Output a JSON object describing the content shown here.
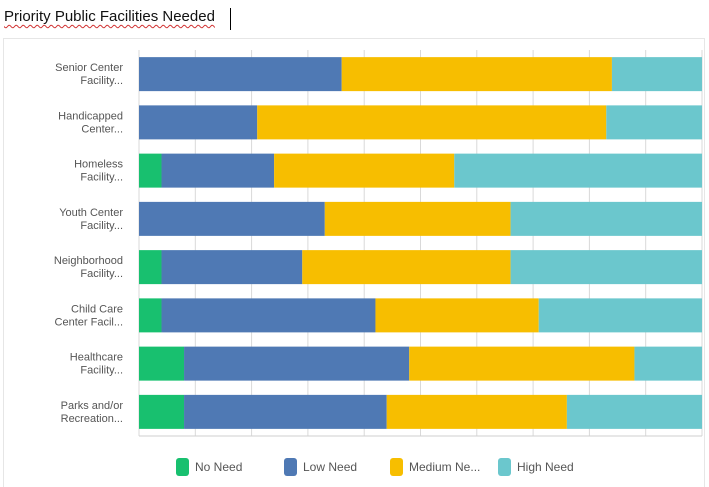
{
  "title": "Priority Public Facilities Needed",
  "colors": {
    "no_need": "#18c06f",
    "low_need": "#4f79b4",
    "medium_need": "#f7be00",
    "high_need": "#6bc7cd",
    "grid": "#d9d9d9",
    "label": "#555555"
  },
  "chart_data": {
    "type": "bar",
    "orientation": "horizontal",
    "stacked": true,
    "percent": true,
    "title": "Priority Public Facilities Needed",
    "categories": [
      [
        "Senior Center",
        "Facility..."
      ],
      [
        "Handicapped",
        "Center..."
      ],
      [
        "Homeless",
        "Facility..."
      ],
      [
        "Youth Center",
        "Facility..."
      ],
      [
        "Neighborhood",
        "Facility..."
      ],
      [
        "Child Care",
        "Center Facil..."
      ],
      [
        "Healthcare",
        "Facility..."
      ],
      [
        "Parks and/or",
        "Recreation..."
      ]
    ],
    "series": [
      {
        "name": "No Need",
        "color": "#18c06f",
        "values": [
          0,
          0,
          4,
          0,
          4,
          4,
          8,
          8
        ]
      },
      {
        "name": "Low Need",
        "color": "#4f79b4",
        "values": [
          36,
          21,
          20,
          33,
          25,
          38,
          40,
          36
        ]
      },
      {
        "name": "Medium Ne...",
        "color": "#f7be00",
        "values": [
          48,
          62,
          32,
          33,
          37,
          29,
          40,
          32
        ]
      },
      {
        "name": "High Need",
        "color": "#6bc7cd",
        "values": [
          16,
          17,
          44,
          34,
          34,
          29,
          12,
          24
        ]
      }
    ],
    "xlim": [
      0,
      100
    ],
    "legend": "bottom"
  }
}
